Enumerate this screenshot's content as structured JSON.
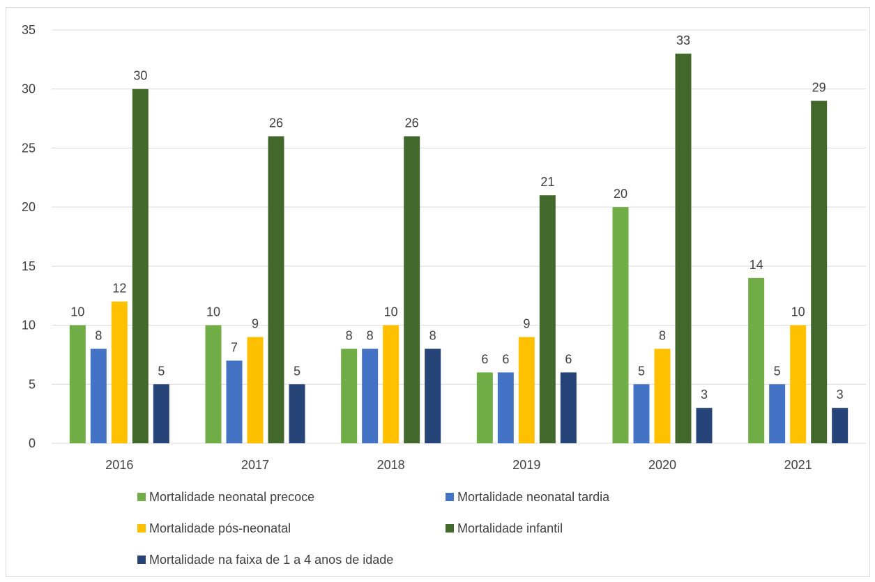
{
  "chart_data": {
    "type": "bar",
    "title": "",
    "xlabel": "",
    "ylabel": "",
    "categories": [
      "2016",
      "2017",
      "2018",
      "2019",
      "2020",
      "2021"
    ],
    "ylim": [
      0,
      35
    ],
    "yticks": [
      0,
      5,
      10,
      15,
      20,
      25,
      30,
      35
    ],
    "grid": true,
    "legend_position": "bottom",
    "data_labels": true,
    "series": [
      {
        "name": "Mortalidade neonatal precoce",
        "color": "#70AD47",
        "values": [
          10,
          10,
          8,
          6,
          20,
          14
        ]
      },
      {
        "name": "Mortalidade neonatal tardia",
        "color": "#4472C4",
        "values": [
          8,
          7,
          8,
          6,
          5,
          5
        ]
      },
      {
        "name": "Mortalidade pós-neonatal",
        "color": "#FFC000",
        "values": [
          12,
          9,
          10,
          9,
          8,
          10
        ]
      },
      {
        "name": "Mortalidade infantil",
        "color": "#43682B",
        "values": [
          30,
          26,
          26,
          21,
          33,
          29
        ]
      },
      {
        "name": "Mortalidade na faixa de 1 a 4 anos de idade",
        "color": "#264478",
        "values": [
          5,
          5,
          8,
          6,
          3,
          3
        ]
      }
    ]
  }
}
